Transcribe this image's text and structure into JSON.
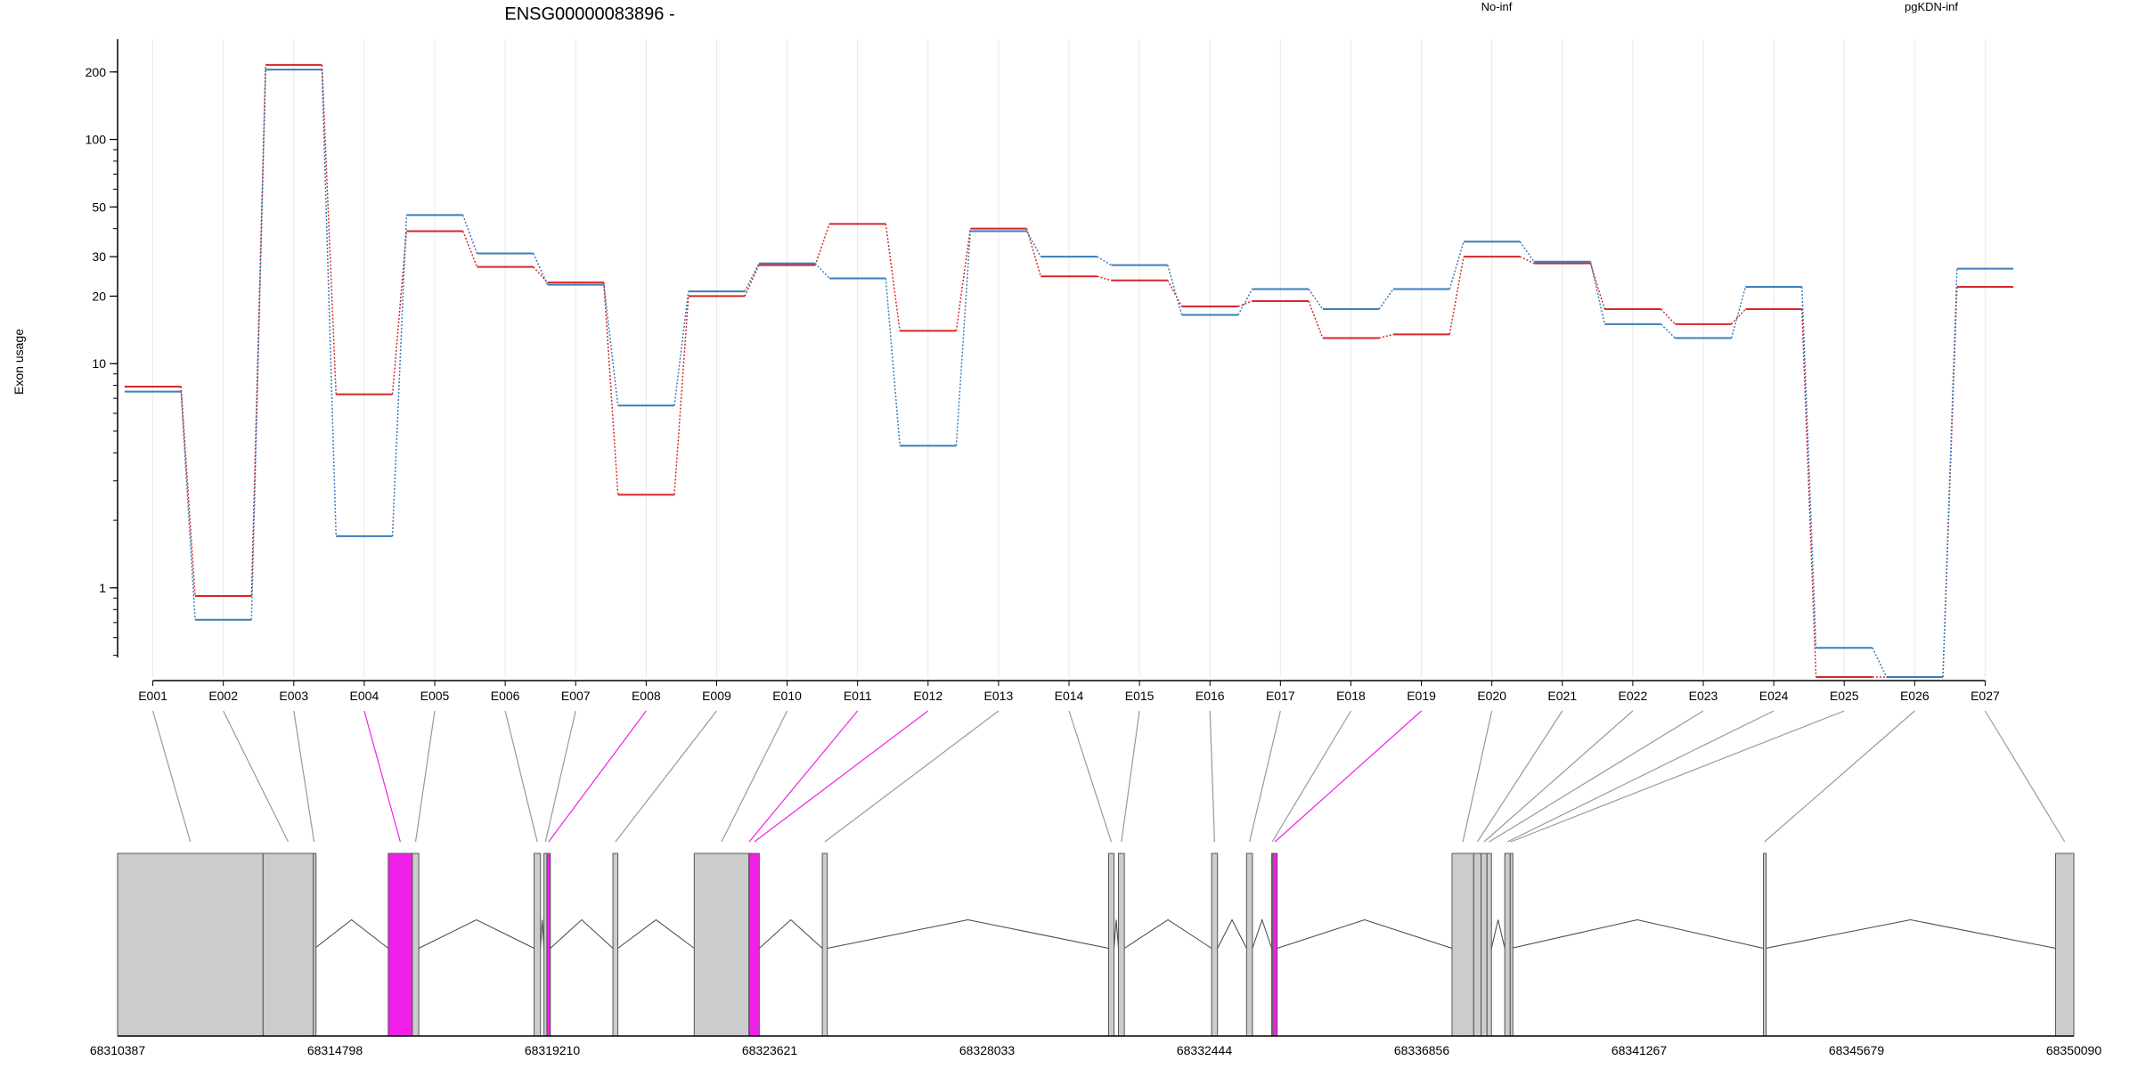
{
  "chart_data": {
    "type": "line",
    "title": "ENSG00000083896 -",
    "ylabel": "Exon usage",
    "yscale": "log",
    "ylim": [
      0.4,
      280
    ],
    "yticks": [
      1,
      10,
      20,
      30,
      50,
      100,
      200
    ],
    "grid": true,
    "legend_position": "top-right",
    "categories": [
      "E001",
      "E002",
      "E003",
      "E004",
      "E005",
      "E006",
      "E007",
      "E008",
      "E009",
      "E010",
      "E011",
      "E012",
      "E013",
      "E014",
      "E015",
      "E016",
      "E017",
      "E018",
      "E019",
      "E020",
      "E021",
      "E022",
      "E023",
      "E024",
      "E025",
      "E026",
      "E027"
    ],
    "series": [
      {
        "name": "No-inf",
        "color": "#d62728",
        "values": [
          7.9,
          0.92,
          215,
          7.3,
          39,
          27,
          23,
          2.6,
          20,
          27.5,
          42,
          14,
          40,
          24.5,
          23.5,
          18,
          19,
          13,
          13.5,
          30,
          28,
          17.5,
          15,
          17.5,
          0.4,
          0.4,
          22
        ]
      },
      {
        "name": "pgKDN-inf",
        "color": "#3a7dbd",
        "values": [
          7.5,
          0.72,
          205,
          1.7,
          46,
          31,
          22.5,
          6.5,
          21,
          28,
          24,
          4.3,
          39,
          30,
          27.5,
          16.5,
          21.5,
          17.5,
          21.5,
          35,
          28.5,
          15,
          13,
          22,
          0.54,
          0.4,
          26.5
        ]
      }
    ],
    "exon_highlight": [
      "E004",
      "E008",
      "E011",
      "E012",
      "E019"
    ],
    "highlight_color": "#f020e8",
    "gene_model": {
      "coord_ticks": [
        "68310387",
        "68314798",
        "68319210",
        "68323621",
        "68328033",
        "68332444",
        "68336856",
        "68341267",
        "68345679",
        "68350090"
      ],
      "xlim": [
        68310387,
        68350090
      ],
      "exons": [
        {
          "id": "E001",
          "start": 68310387,
          "end": 68313340
        },
        {
          "id": "E002",
          "start": 68313340,
          "end": 68314360
        },
        {
          "id": "E003",
          "start": 68314360,
          "end": 68314390
        },
        {
          "id": "E004",
          "start": 68315880,
          "end": 68316370
        },
        {
          "id": "E005",
          "start": 68316370,
          "end": 68316500
        },
        {
          "id": "E006",
          "start": 68318840,
          "end": 68318970
        },
        {
          "id": "E007",
          "start": 68319040,
          "end": 68319100
        },
        {
          "id": "E008",
          "start": 68319100,
          "end": 68319170
        },
        {
          "id": "E009",
          "start": 68320440,
          "end": 68320540
        },
        {
          "id": "E010",
          "start": 68322090,
          "end": 68323200
        },
        {
          "id": "E011",
          "start": 68323200,
          "end": 68323210
        },
        {
          "id": "E012",
          "start": 68323210,
          "end": 68323410
        },
        {
          "id": "E013",
          "start": 68324690,
          "end": 68324790
        },
        {
          "id": "E014",
          "start": 68330500,
          "end": 68330610
        },
        {
          "id": "E015",
          "start": 68330700,
          "end": 68330820
        },
        {
          "id": "E016",
          "start": 68332590,
          "end": 68332710
        },
        {
          "id": "E017",
          "start": 68333300,
          "end": 68333420
        },
        {
          "id": "E018",
          "start": 68333810,
          "end": 68333830
        },
        {
          "id": "E019",
          "start": 68333830,
          "end": 68333920
        },
        {
          "id": "E020",
          "start": 68337470,
          "end": 68337910
        },
        {
          "id": "E021",
          "start": 68337910,
          "end": 68338060
        },
        {
          "id": "E022",
          "start": 68338060,
          "end": 68338180
        },
        {
          "id": "E023",
          "start": 68338180,
          "end": 68338270
        },
        {
          "id": "E024",
          "start": 68338540,
          "end": 68338650
        },
        {
          "id": "E025",
          "start": 68338650,
          "end": 68338670
        },
        {
          "id": "E026",
          "start": 68343790,
          "end": 68343830
        },
        {
          "id": "E027",
          "start": 68349720,
          "end": 68350090
        }
      ],
      "introns": [
        [
          68314390,
          68315880
        ],
        [
          68316500,
          68318840
        ],
        [
          68318970,
          68319040
        ],
        [
          68319170,
          68320440
        ],
        [
          68320540,
          68322090
        ],
        [
          68323410,
          68324690
        ],
        [
          68324790,
          68330500
        ],
        [
          68330610,
          68330700
        ],
        [
          68330820,
          68332590
        ],
        [
          68332710,
          68333300
        ],
        [
          68333420,
          68333810
        ],
        [
          68333920,
          68337470
        ],
        [
          68338270,
          68338540
        ],
        [
          68338670,
          68343790
        ],
        [
          68343830,
          68349720
        ]
      ]
    }
  }
}
